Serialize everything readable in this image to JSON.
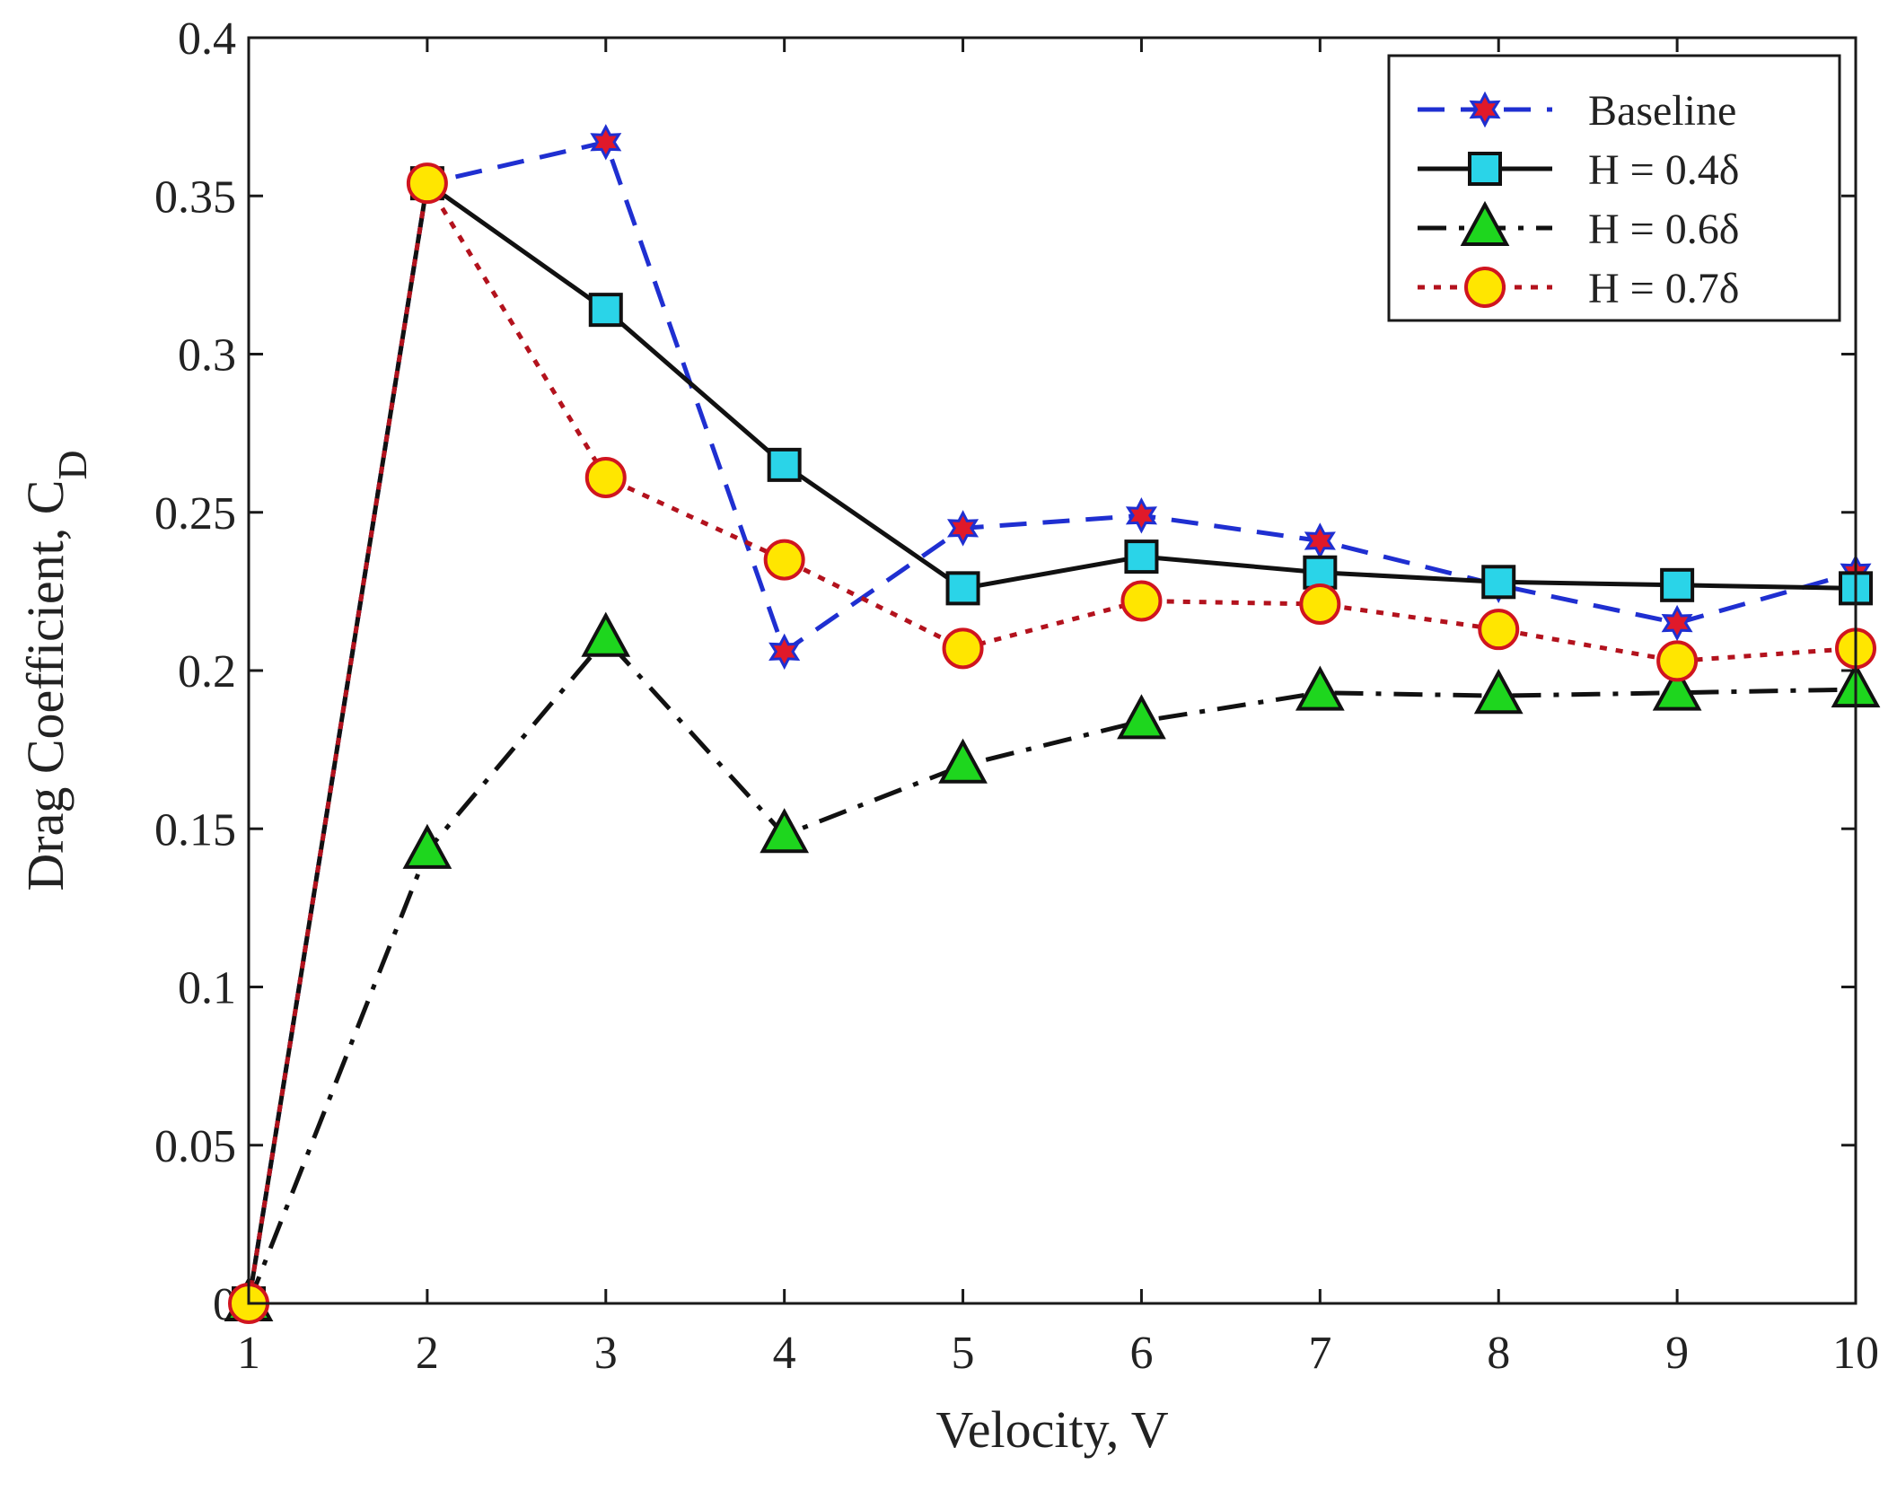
{
  "chart_data": {
    "type": "line",
    "title": "",
    "xlabel": "Velocity, V",
    "ylabel": "Drag Coefficient, C",
    "ylabel_subscript": "D",
    "x": [
      1,
      2,
      3,
      4,
      5,
      6,
      7,
      8,
      9,
      10
    ],
    "xlim": [
      1,
      10
    ],
    "ylim": [
      0,
      0.4
    ],
    "x_ticks": [
      "1",
      "2",
      "3",
      "4",
      "5",
      "6",
      "7",
      "8",
      "9",
      "10"
    ],
    "y_ticks": [
      "0",
      "0.05",
      "0.1",
      "0.15",
      "0.2",
      "0.25",
      "0.3",
      "0.35",
      "0.4"
    ],
    "grid": false,
    "legend_position": "top-right",
    "series": [
      {
        "name": "Baseline",
        "values": [
          0,
          0.354,
          0.367,
          0.206,
          0.245,
          0.249,
          0.241,
          0.227,
          0.215,
          0.231
        ],
        "line_color": "#1f2fd1",
        "line_style": "dashed",
        "marker": "hexagram",
        "marker_fill": "#e0192a",
        "marker_edge": "#1f2fd1"
      },
      {
        "name": "H = 0.4δ",
        "values": [
          0,
          0.354,
          0.314,
          0.265,
          0.226,
          0.236,
          0.231,
          0.228,
          0.227,
          0.226
        ],
        "line_color": "#111111",
        "line_style": "solid",
        "marker": "square",
        "marker_fill": "#2ad4e8",
        "marker_edge": "#111111"
      },
      {
        "name": "H = 0.6δ",
        "values": [
          0,
          0.143,
          0.21,
          0.148,
          0.17,
          0.184,
          0.193,
          0.192,
          0.193,
          0.194
        ],
        "line_color": "#111111",
        "line_style": "dashdot",
        "marker": "triangle",
        "marker_fill": "#1ed61e",
        "marker_edge": "#111111"
      },
      {
        "name": "H = 0.7δ",
        "values": [
          0,
          0.354,
          0.261,
          0.235,
          0.207,
          0.222,
          0.221,
          0.213,
          0.203,
          0.207
        ],
        "line_color": "#b3121d",
        "line_style": "dotted",
        "marker": "circle",
        "marker_fill": "#ffe600",
        "marker_edge": "#d0151f"
      }
    ]
  }
}
